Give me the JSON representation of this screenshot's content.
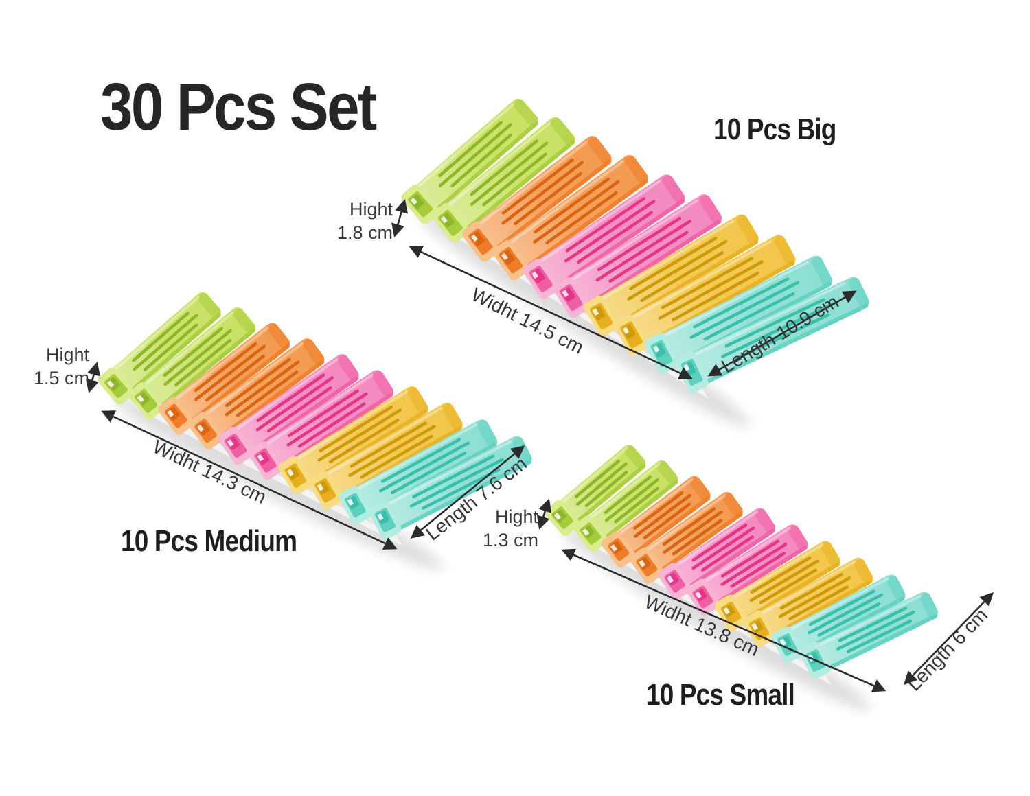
{
  "title": "30 Pcs Set",
  "sets": {
    "big": {
      "label": "10 Pcs Big",
      "height_line1": "Hight",
      "height_line2": "1.8 cm",
      "width": "Widht 14.5 cm",
      "length": "Length 10.9 cm"
    },
    "medium": {
      "label": "10 Pcs Medium",
      "height_line1": "Hight",
      "height_line2": "1.5 cm",
      "width": "Widht 14.3 cm",
      "length": "Length 7.6 cm"
    },
    "small": {
      "label": "10 Pcs Small",
      "height_line1": "Hight",
      "height_line2": "1.3 cm",
      "width": "Widht 13.8 cm",
      "length": "Length 6 cm"
    }
  },
  "clip_colors": [
    {
      "name": "yellow-green",
      "main": "#c8e163",
      "dark": "#a6cb3c",
      "slot": "#8db628",
      "pale": "#d9ec8e"
    },
    {
      "name": "orange",
      "main": "#f49a50",
      "dark": "#ee7c28",
      "slot": "#d96412",
      "pale": "#f9c089"
    },
    {
      "name": "pink",
      "main": "#f489bf",
      "dark": "#ee5ea2",
      "slot": "#e43587",
      "pale": "#f9b4d4"
    },
    {
      "name": "yellow",
      "main": "#f2c64a",
      "dark": "#e7af1f",
      "slot": "#cf9a0a",
      "pale": "#f8dc81"
    },
    {
      "name": "turquoise",
      "main": "#8cdfd3",
      "dark": "#5ed0bf",
      "slot": "#3abfab",
      "pale": "#b5ece2"
    }
  ],
  "annotation_color": "#2b2b2b"
}
